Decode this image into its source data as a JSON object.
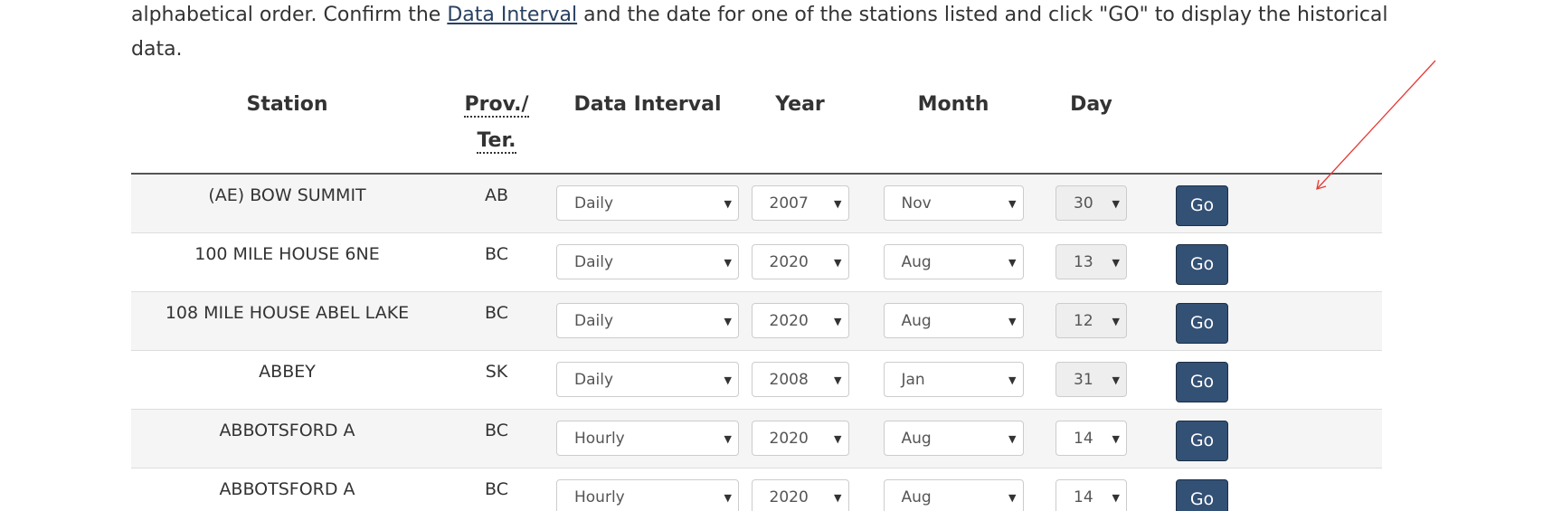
{
  "intro": {
    "text_before": "alphabetical order. Confirm the ",
    "link": "Data Interval",
    "text_after": " and the date for one of the stations listed and click \"GO\" to display the historical data."
  },
  "table": {
    "headers": {
      "station": "Station",
      "prov": "Prov./ Ter.",
      "interval": "Data Interval",
      "year": "Year",
      "month": "Month",
      "day": "Day"
    },
    "rows": [
      {
        "station": "(AE) BOW SUMMIT",
        "prov": "AB",
        "interval": "Daily",
        "year": "2007",
        "month": "Nov",
        "day": "30",
        "day_disabled": true,
        "go": "Go"
      },
      {
        "station": "100 MILE HOUSE 6NE",
        "prov": "BC",
        "interval": "Daily",
        "year": "2020",
        "month": "Aug",
        "day": "13",
        "day_disabled": true,
        "go": "Go"
      },
      {
        "station": "108 MILE HOUSE ABEL LAKE",
        "prov": "BC",
        "interval": "Daily",
        "year": "2020",
        "month": "Aug",
        "day": "12",
        "day_disabled": true,
        "go": "Go"
      },
      {
        "station": "ABBEY",
        "prov": "SK",
        "interval": "Daily",
        "year": "2008",
        "month": "Jan",
        "day": "31",
        "day_disabled": true,
        "go": "Go"
      },
      {
        "station": "ABBOTSFORD A",
        "prov": "BC",
        "interval": "Hourly",
        "year": "2020",
        "month": "Aug",
        "day": "14",
        "day_disabled": false,
        "go": "Go"
      },
      {
        "station": "ABBOTSFORD A",
        "prov": "BC",
        "interval": "Hourly",
        "year": "2020",
        "month": "Aug",
        "day": "14",
        "day_disabled": false,
        "go": "Go"
      }
    ]
  },
  "colors": {
    "link": "#284162",
    "button": "#335075",
    "annotation_arrow": "#e53935",
    "row_stripe": "#f5f5f5"
  },
  "icons": {
    "dropdown": "caret-down-icon",
    "annotation": "red-arrow-icon"
  }
}
